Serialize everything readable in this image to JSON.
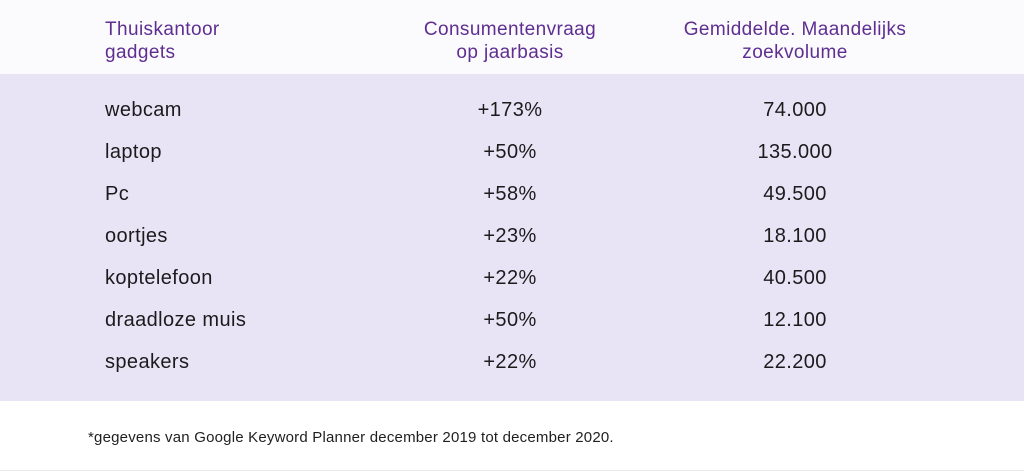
{
  "chart_data": {
    "type": "table",
    "columns": [
      "Thuiskantoor gadgets",
      "Consumentenvraag op jaarbasis",
      "Gemiddelde. Maandelijks zoekvolume"
    ],
    "rows": [
      {
        "gadget": "webcam",
        "demand_display": "+173%",
        "demand_pct": 173,
        "volume_display": "74.000",
        "volume": 74000
      },
      {
        "gadget": "laptop",
        "demand_display": "+50%",
        "demand_pct": 50,
        "volume_display": "135.000",
        "volume": 135000
      },
      {
        "gadget": "Pc",
        "demand_display": "+58%",
        "demand_pct": 58,
        "volume_display": "49.500",
        "volume": 49500
      },
      {
        "gadget": "oortjes",
        "demand_display": "+23%",
        "demand_pct": 23,
        "volume_display": "18.100",
        "volume": 18100
      },
      {
        "gadget": "koptelefoon",
        "demand_display": "+22%",
        "demand_pct": 22,
        "volume_display": "40.500",
        "volume": 40500
      },
      {
        "gadget": "draadloze muis",
        "demand_display": "+50%",
        "demand_pct": 50,
        "volume_display": "12.100",
        "volume": 12100
      },
      {
        "gadget": "speakers",
        "demand_display": "+22%",
        "demand_pct": 22,
        "volume_display": "22.200",
        "volume": 22200
      }
    ],
    "footnote": "*gegevens van Google Keyword Planner december 2019 tot december 2020."
  },
  "headers": {
    "col1": "Thuiskantoor\ngadgets",
    "col2": "Consumentenvraag\nop jaarbasis",
    "col3": "Gemiddelde. Maandelijks\nzoekvolume"
  },
  "colors": {
    "header_text": "#5e2e91",
    "body_text": "#1b1b1d",
    "body_background": "#e9e4f5",
    "header_background": "#fbfafd"
  }
}
